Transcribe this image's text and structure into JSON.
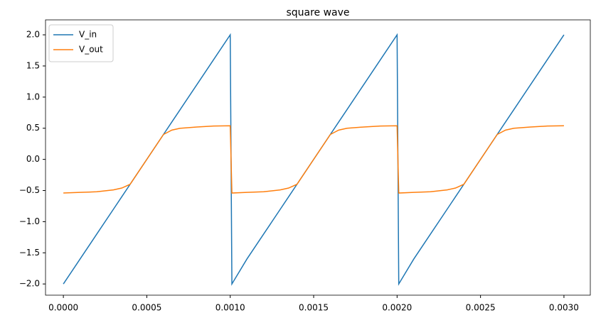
{
  "chart_data": {
    "type": "line",
    "title": "square wave",
    "x": [
      0,
      0.0001,
      0.0002,
      0.0003,
      0.00035,
      0.0004,
      0.0005,
      0.0006,
      0.00065,
      0.0007,
      0.0008,
      0.0009,
      0.001,
      0.00101,
      0.0011,
      0.0012,
      0.0013,
      0.00135,
      0.0014,
      0.0015,
      0.0016,
      0.00165,
      0.0017,
      0.0018,
      0.0019,
      0.002,
      0.00201,
      0.0021,
      0.0022,
      0.0023,
      0.00235,
      0.0024,
      0.0025,
      0.0026,
      0.00265,
      0.0027,
      0.0028,
      0.0029,
      0.003
    ],
    "series": [
      {
        "name": "V_in",
        "color": "#1f77b4",
        "values": [
          -2,
          -1.6,
          -1.2,
          -0.8,
          -0.6,
          -0.4,
          0,
          0.4,
          0.6,
          0.8,
          1.2,
          1.6,
          2,
          -2,
          -1.6,
          -1.2,
          -0.8,
          -0.6,
          -0.4,
          0,
          0.4,
          0.6,
          0.8,
          1.2,
          1.6,
          2,
          -2,
          -1.6,
          -1.2,
          -0.8,
          -0.6,
          -0.4,
          0,
          0.4,
          0.6,
          0.8,
          1.2,
          1.6,
          2
        ]
      },
      {
        "name": "V_out",
        "color": "#ff7f0e",
        "values": [
          -0.54,
          -0.53,
          -0.52,
          -0.49,
          -0.46,
          -0.4,
          0,
          0.4,
          0.47,
          0.5,
          0.52,
          0.535,
          0.54,
          -0.54,
          -0.53,
          -0.52,
          -0.49,
          -0.46,
          -0.4,
          0,
          0.4,
          0.47,
          0.5,
          0.52,
          0.535,
          0.54,
          -0.54,
          -0.53,
          -0.52,
          -0.49,
          -0.46,
          -0.4,
          0,
          0.4,
          0.47,
          0.5,
          0.52,
          0.535,
          0.54
        ]
      }
    ],
    "xlim": [
      -0.000107,
      0.003158
    ],
    "ylim": [
      -2.18,
      2.24
    ],
    "xticks": [
      {
        "value": 0,
        "label": "0.0000"
      },
      {
        "value": 0.0005,
        "label": "0.0005"
      },
      {
        "value": 0.001,
        "label": "0.0010"
      },
      {
        "value": 0.0015,
        "label": "0.0015"
      },
      {
        "value": 0.002,
        "label": "0.0020"
      },
      {
        "value": 0.0025,
        "label": "0.0025"
      },
      {
        "value": 0.003,
        "label": "0.0030"
      }
    ],
    "yticks": [
      {
        "value": -2,
        "label": "−2.0"
      },
      {
        "value": -1.5,
        "label": "−1.5"
      },
      {
        "value": -1,
        "label": "−1.0"
      },
      {
        "value": -0.5,
        "label": "−0.5"
      },
      {
        "value": 0,
        "label": "0.0"
      },
      {
        "value": 0.5,
        "label": "0.5"
      },
      {
        "value": 1,
        "label": "1.0"
      },
      {
        "value": 1.5,
        "label": "1.5"
      },
      {
        "value": 2,
        "label": "2.0"
      }
    ],
    "legend": "upper left"
  }
}
